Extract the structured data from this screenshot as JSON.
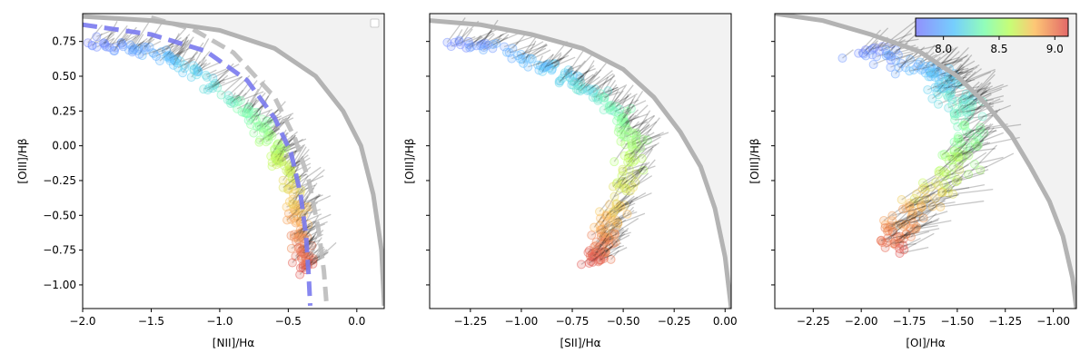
{
  "chart_data": [
    {
      "type": "scatter",
      "xlabel": "[NII]/Hα",
      "ylabel": "[OIII]/Hβ",
      "xlim": [
        -2.0,
        0.2
      ],
      "ylim": [
        -1.17,
        0.95
      ],
      "xticks": [
        -2.0,
        -1.5,
        -1.0,
        -0.5,
        0.0
      ],
      "xtick_labels": [
        "−2.0",
        "−1.5",
        "−1.0",
        "−0.5",
        "0.0"
      ],
      "yticks": [
        -1.0,
        -0.75,
        -0.5,
        -0.25,
        0.0,
        0.25,
        0.5,
        0.75
      ],
      "ytick_labels": [
        "−1.00",
        "−0.75",
        "−0.50",
        "−0.25",
        "0.00",
        "0.25",
        "0.50",
        "0.75"
      ],
      "show_yticklabels": true,
      "legend": "top-right (empty)",
      "boundary_curve": {
        "x": [
          -2.0,
          -1.5,
          -1.0,
          -0.6,
          -0.3,
          -0.1,
          0.03,
          0.12,
          0.18,
          0.2
        ],
        "y": [
          0.93,
          0.9,
          0.83,
          0.7,
          0.5,
          0.25,
          0.0,
          -0.35,
          -0.75,
          -1.15
        ]
      },
      "reference_curves": [
        {
          "color": "#7a7aee",
          "style": "dashed",
          "x": [
            -2.0,
            -1.5,
            -1.1,
            -0.8,
            -0.6,
            -0.48,
            -0.41,
            -0.37,
            -0.35,
            -0.34
          ],
          "y": [
            0.87,
            0.8,
            0.68,
            0.47,
            0.2,
            -0.05,
            -0.35,
            -0.65,
            -0.95,
            -1.15
          ]
        },
        {
          "color": "#bbbbbb",
          "style": "dashed",
          "x": [
            -1.5,
            -1.2,
            -0.9,
            -0.6,
            -0.45,
            -0.35,
            -0.28,
            -0.24,
            -0.22
          ],
          "y": [
            0.92,
            0.84,
            0.67,
            0.35,
            0.05,
            -0.25,
            -0.6,
            -0.9,
            -1.15
          ]
        }
      ],
      "cloud": {
        "path_x": [
          -1.9,
          -1.6,
          -1.3,
          -1.0,
          -0.75,
          -0.6,
          -0.5,
          -0.43,
          -0.4,
          -0.38
        ],
        "path_y": [
          0.75,
          0.7,
          0.6,
          0.4,
          0.2,
          0.0,
          -0.2,
          -0.45,
          -0.7,
          -0.9
        ],
        "spread": 0.08,
        "count": 260
      }
    },
    {
      "type": "scatter",
      "xlabel": "[SII]/Hα",
      "ylabel": "[OIII]/Hβ",
      "xlim": [
        -1.45,
        0.03
      ],
      "ylim": [
        -1.17,
        0.95
      ],
      "xticks": [
        -1.25,
        -1.0,
        -0.75,
        -0.5,
        -0.25,
        0.0
      ],
      "xtick_labels": [
        "−1.25",
        "−1.00",
        "−0.75",
        "−0.50",
        "−0.25",
        "0.00"
      ],
      "yticks": [
        -1.0,
        -0.75,
        -0.5,
        -0.25,
        0.0,
        0.25,
        0.5,
        0.75
      ],
      "ytick_labels": [],
      "show_yticklabels": false,
      "boundary_curve": {
        "x": [
          -1.45,
          -1.2,
          -0.95,
          -0.7,
          -0.5,
          -0.35,
          -0.22,
          -0.12,
          -0.05,
          0.0,
          0.03
        ],
        "y": [
          0.9,
          0.87,
          0.8,
          0.7,
          0.55,
          0.35,
          0.1,
          -0.15,
          -0.45,
          -0.8,
          -1.17
        ]
      },
      "reference_curves": [],
      "cloud": {
        "path_x": [
          -1.35,
          -1.1,
          -0.85,
          -0.65,
          -0.5,
          -0.45,
          -0.48,
          -0.55,
          -0.6,
          -0.65
        ],
        "path_y": [
          0.75,
          0.7,
          0.55,
          0.38,
          0.2,
          0.0,
          -0.25,
          -0.5,
          -0.7,
          -0.85
        ],
        "spread": 0.07,
        "count": 260
      }
    },
    {
      "type": "scatter",
      "xlabel": "[OI]/Hα",
      "ylabel": "[OIII]/Hβ",
      "xlim": [
        -2.45,
        -0.88
      ],
      "ylim": [
        -1.17,
        0.95
      ],
      "xticks": [
        -2.25,
        -2.0,
        -1.75,
        -1.5,
        -1.25,
        -1.0
      ],
      "xtick_labels": [
        "−2.25",
        "−2.00",
        "−1.75",
        "−1.50",
        "−1.25",
        "−1.00"
      ],
      "yticks": [
        -1.0,
        -0.75,
        -0.5,
        -0.25,
        0.0,
        0.25,
        0.5,
        0.75
      ],
      "ytick_labels": [],
      "show_yticklabels": false,
      "boundary_curve": {
        "x": [
          -2.45,
          -2.2,
          -1.95,
          -1.7,
          -1.5,
          -1.35,
          -1.22,
          -1.12,
          -1.02,
          -0.95,
          -0.9,
          -0.88
        ],
        "y": [
          0.95,
          0.9,
          0.8,
          0.68,
          0.5,
          0.3,
          0.08,
          -0.15,
          -0.4,
          -0.65,
          -0.95,
          -1.17
        ]
      },
      "reference_curves": [],
      "cloud": {
        "path_x": [
          -2.0,
          -1.75,
          -1.55,
          -1.45,
          -1.45,
          -1.55,
          -1.7,
          -1.8,
          -1.85
        ],
        "path_y": [
          0.7,
          0.6,
          0.45,
          0.25,
          0.0,
          -0.2,
          -0.4,
          -0.6,
          -0.75
        ],
        "spread": 0.12,
        "count": 260
      }
    }
  ],
  "colorbar": {
    "ticks": [
      8.0,
      8.5,
      9.0
    ],
    "tick_labels": [
      "8.0",
      "8.5",
      "9.0"
    ],
    "range": [
      7.75,
      9.12
    ],
    "colormap": "rainbow"
  },
  "colors": {
    "boundary": "#b3b3b3",
    "shade": "#f2f2f2",
    "arrow": "#000000"
  }
}
